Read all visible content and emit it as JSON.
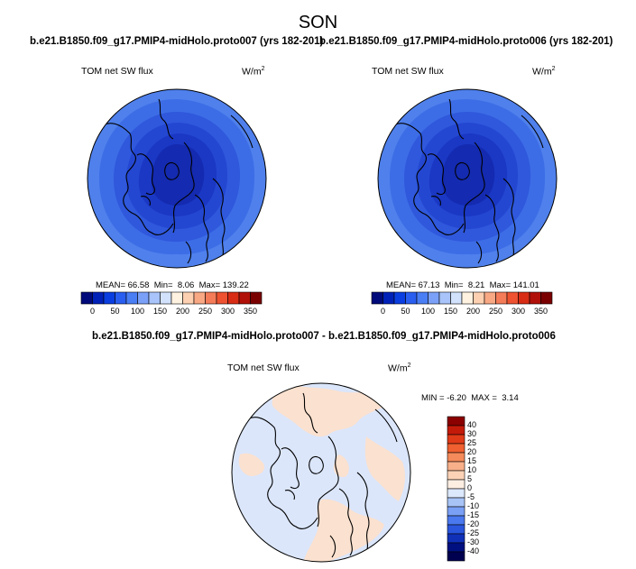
{
  "figure": {
    "title": "SON"
  },
  "panels": [
    {
      "subtitle": "b.e21.B1850.f09_g17.PMIP4-midHolo.proto007 (yrs 182-201)",
      "variable": "TOM net SW flux",
      "units_base": "W/m",
      "units_exp": "2",
      "mean_label": "MEAN=",
      "mean": "66.58",
      "min_label": "Min=",
      "min": "8.06",
      "max_label": "Max=",
      "max": "139.22"
    },
    {
      "subtitle": "b.e21.B1850.f09_g17.PMIP4-midHolo.proto006 (yrs 182-201)",
      "variable": "TOM net SW flux",
      "units_base": "W/m",
      "units_exp": "2",
      "mean_label": "MEAN=",
      "mean": "67.13",
      "min_label": "Min=",
      "min": "8.21",
      "max_label": "Max=",
      "max": "141.01"
    }
  ],
  "horizontal_colorbar": {
    "tick_labels": [
      "0",
      "50",
      "100",
      "150",
      "200",
      "250",
      "300",
      "350"
    ],
    "colors": [
      "#000a7a",
      "#0021b8",
      "#0a3ee0",
      "#2a5ef0",
      "#4a7ef5",
      "#7aa0f7",
      "#a8c4fa",
      "#d2e2fc",
      "#fff2e0",
      "#fcd0b0",
      "#f9a884",
      "#f57c58",
      "#ee5230",
      "#d82c14",
      "#b01008",
      "#7a0000"
    ]
  },
  "difference_panel": {
    "subtitle": "b.e21.B1850.f09_g17.PMIP4-midHolo.proto007 - b.e21.B1850.f09_g17.PMIP4-midHolo.proto006",
    "variable": "TOM net SW flux",
    "units_base": "W/m",
    "units_exp": "2",
    "min_label": "MIN =",
    "min": "-6.20",
    "max_label": "MAX =",
    "max": "3.14"
  },
  "vertical_colorbar": {
    "tick_labels": [
      "40",
      "30",
      "25",
      "20",
      "15",
      "10",
      "5",
      "0",
      "-5",
      "-10",
      "-15",
      "-20",
      "-25",
      "-30",
      "-40"
    ],
    "colors": [
      "#8b0000",
      "#c41a0a",
      "#e03a18",
      "#f06030",
      "#f58a5a",
      "#f8b08a",
      "#fbd2b6",
      "#fdeee2",
      "#dce8fc",
      "#a8c4f7",
      "#7aa0f5",
      "#4a78ee",
      "#2a55dd",
      "#1030b8",
      "#001080",
      "#000050"
    ]
  },
  "map_colors": {
    "outer": "#4f80ec",
    "ring2": "#3d6de6",
    "ring3": "#2f58dc",
    "ring4": "#2447d2",
    "ring5": "#1a38c4",
    "core": "#142ab0",
    "diff_base": "#dbe6fb",
    "diff_warm": "#fbe1cf"
  }
}
